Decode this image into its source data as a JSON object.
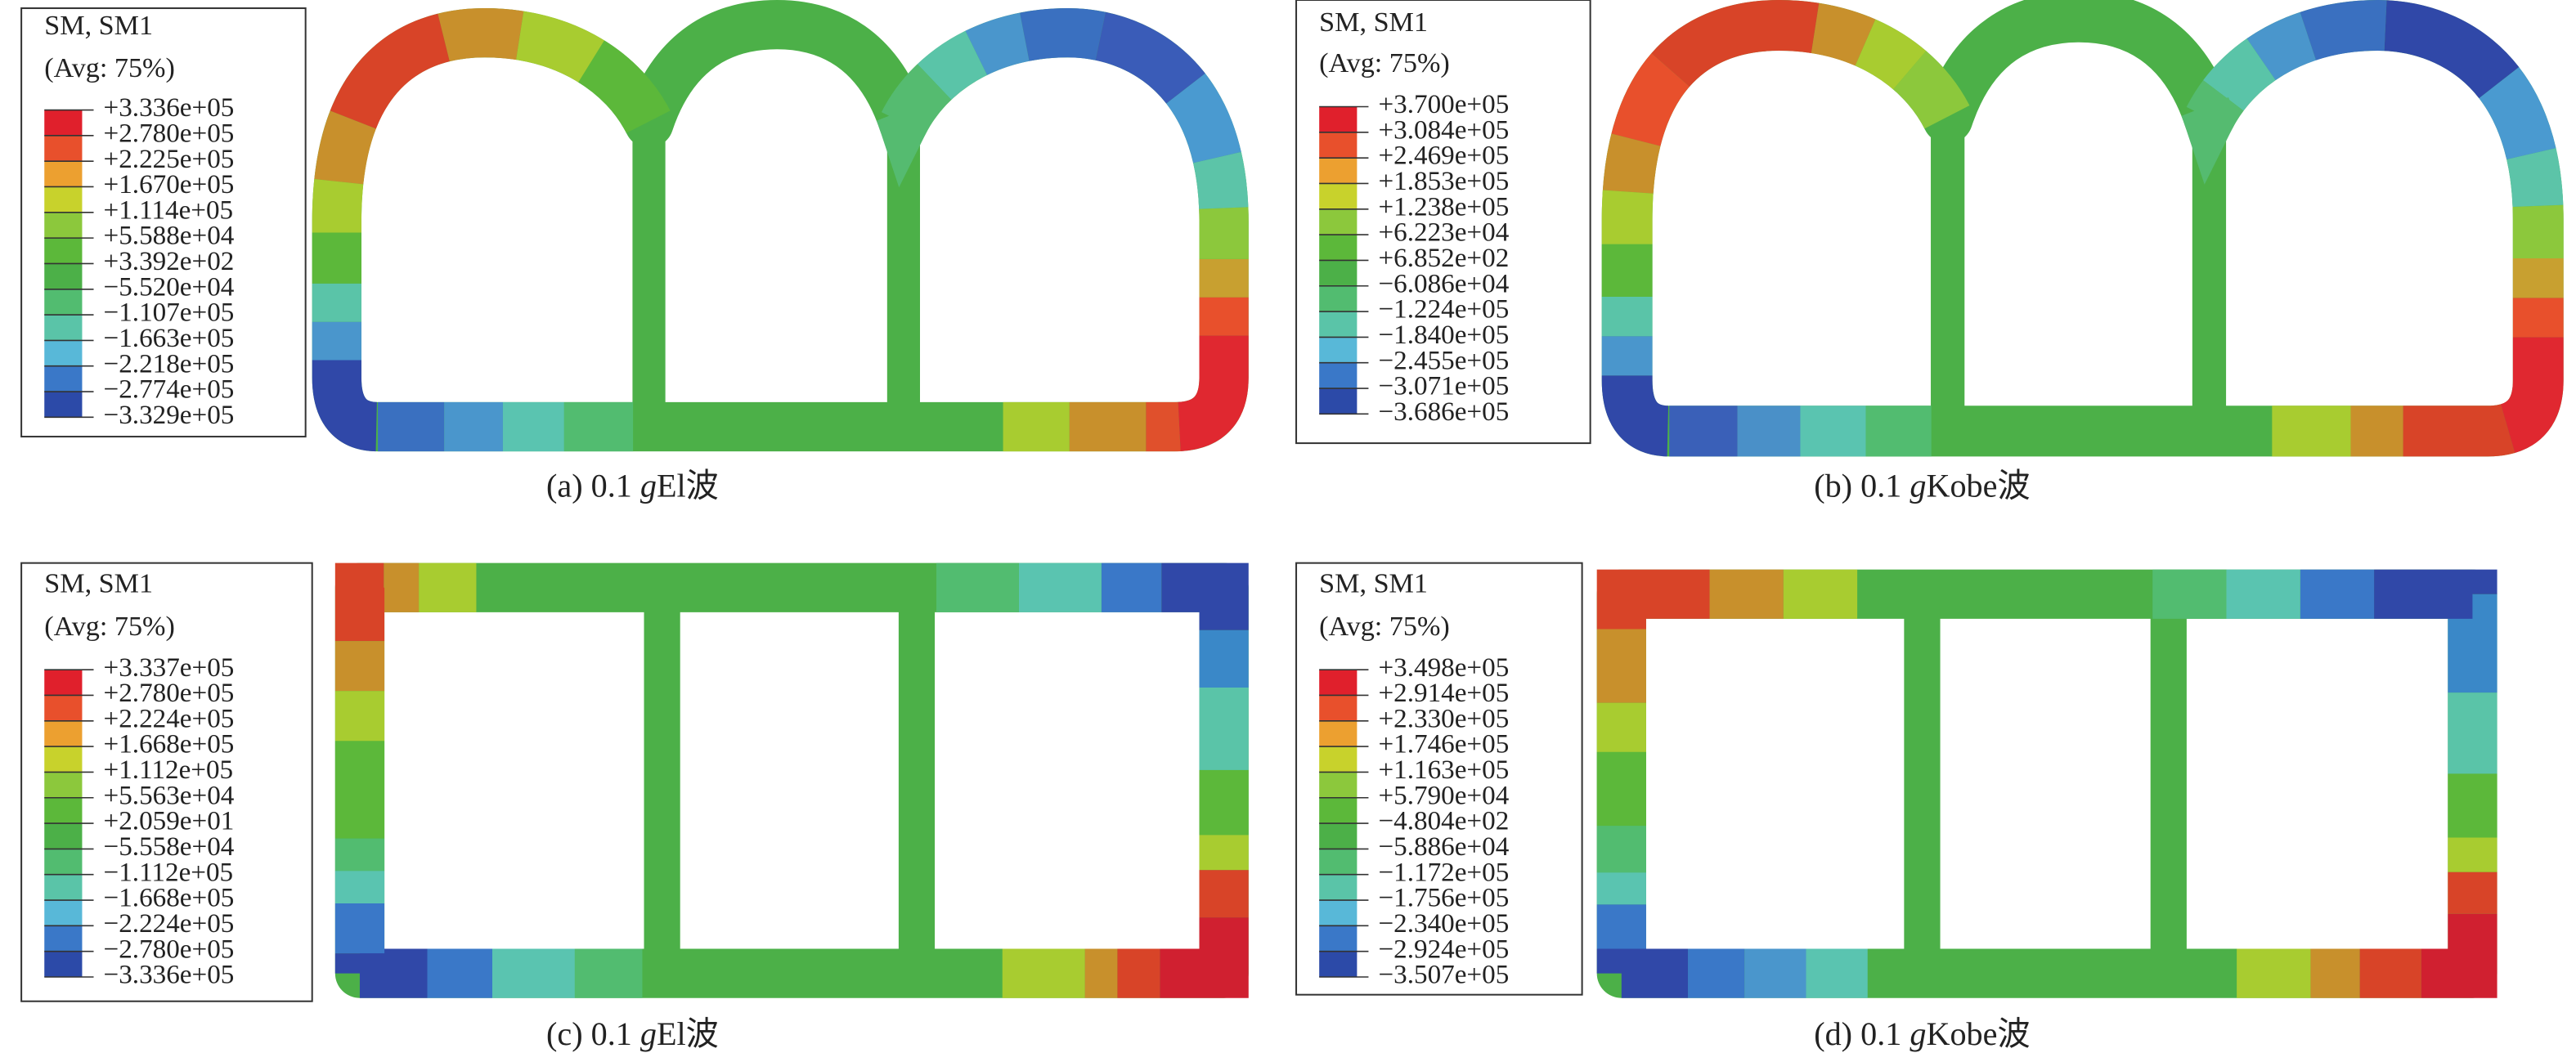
{
  "legend_colors": [
    "#e0202c",
    "#e8502c",
    "#eca030",
    "#c8d22c",
    "#8cc83c",
    "#5cb83a",
    "#4cb048",
    "#52bc70",
    "#5ac4a8",
    "#58b8d8",
    "#3a78c8",
    "#2c4aa8"
  ],
  "panels": [
    {
      "legend": {
        "title": "SM, SM1",
        "subtitle": "(Avg: 75%)",
        "labels": [
          "+3.336e+05",
          "+2.780e+05",
          "+2.225e+05",
          "+1.670e+05",
          "+1.114e+05",
          "+5.588e+04",
          "+3.392e+02",
          "−5.520e+04",
          "−1.107e+05",
          "−1.663e+05",
          "−2.218e+05",
          "−2.774e+05",
          "−3.329e+05"
        ]
      },
      "caption": {
        "label": "(a)",
        "amplitude": "0.1",
        "unit": "g",
        "wave": "El波"
      }
    },
    {
      "legend": {
        "title": "SM, SM1",
        "subtitle": "(Avg: 75%)",
        "labels": [
          "+3.700e+05",
          "+3.084e+05",
          "+2.469e+05",
          "+1.853e+05",
          "+1.238e+05",
          "+6.223e+04",
          "+6.852e+02",
          "−6.086e+04",
          "−1.224e+05",
          "−1.840e+05",
          "−2.455e+05",
          "−3.071e+05",
          "−3.686e+05"
        ]
      },
      "caption": {
        "label": "(b)",
        "amplitude": "0.1",
        "unit": "g",
        "wave": "Kobe波"
      }
    },
    {
      "legend": {
        "title": "SM, SM1",
        "subtitle": "(Avg: 75%)",
        "labels": [
          "+3.337e+05",
          "+2.780e+05",
          "+2.224e+05",
          "+1.668e+05",
          "+1.112e+05",
          "+5.563e+04",
          "+2.059e+01",
          "−5.558e+04",
          "−1.112e+05",
          "−1.668e+05",
          "−2.224e+05",
          "−2.780e+05",
          "−3.336e+05"
        ]
      },
      "caption": {
        "label": "(c)",
        "amplitude": "0.1",
        "unit": "g",
        "wave": "El波"
      }
    },
    {
      "legend": {
        "title": "SM, SM1",
        "subtitle": "(Avg: 75%)",
        "labels": [
          "+3.498e+05",
          "+2.914e+05",
          "+2.330e+05",
          "+1.746e+05",
          "+1.163e+05",
          "+5.790e+04",
          "−4.804e+02",
          "−5.886e+04",
          "−1.172e+05",
          "−1.756e+05",
          "−2.340e+05",
          "−2.924e+05",
          "−3.507e+05"
        ]
      },
      "caption": {
        "label": "(d)",
        "amplitude": "0.1",
        "unit": "g",
        "wave": "Kobe波"
      }
    }
  ]
}
